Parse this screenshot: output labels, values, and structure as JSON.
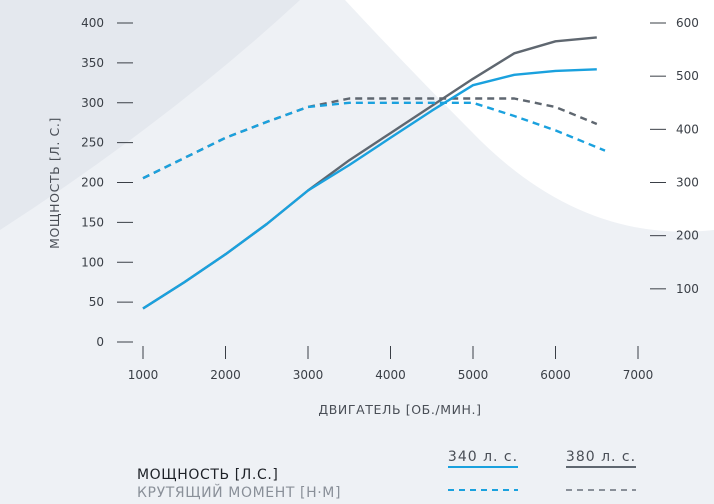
{
  "chart_data": {
    "type": "line",
    "xlabel": "ДВИГАТЕЛЬ [ОБ./МИН.]",
    "ylabel": "МОЩНОСТЬ [Л. С.]",
    "xlim": [
      1000,
      7000
    ],
    "x_ticks": [
      "1000",
      "2000",
      "3000",
      "4000",
      "5000",
      "6000",
      "7000"
    ],
    "ylim_left": [
      0,
      400
    ],
    "y_ticks_left": [
      "0",
      "50",
      "100",
      "150",
      "200",
      "250",
      "300",
      "350",
      "400"
    ],
    "ylim_right": [
      0,
      600
    ],
    "y_ticks_right": [
      "100",
      "200",
      "300",
      "400",
      "500",
      "600"
    ],
    "grid": false,
    "legend": {
      "placement": "bottom-right",
      "column_headers": [
        "340 л. с.",
        "380 л. с."
      ],
      "row_labels": [
        "МОЩНОСТЬ [Л.С.]",
        "КРУТЯЩИЙ МОМЕНТ [Н·М]"
      ]
    },
    "colors": {
      "hp340": "#1aa1de",
      "hp380": "#5f6770"
    },
    "series": [
      {
        "name": "МОЩНОСТЬ [Л.С.]",
        "variant": "340 л. с.",
        "axis": "left",
        "style": "solid",
        "x": [
          1000,
          1500,
          2000,
          2500,
          3000,
          3500,
          4000,
          4500,
          5000,
          5500,
          6000,
          6500
        ],
        "y": [
          42,
          75,
          110,
          148,
          190,
          222,
          256,
          290,
          322,
          335,
          340,
          342
        ]
      },
      {
        "name": "МОЩНОСТЬ [Л.С.]",
        "variant": "380 л. с.",
        "axis": "left",
        "style": "solid",
        "x": [
          1000,
          1500,
          2000,
          2500,
          3000,
          3500,
          4000,
          4500,
          5000,
          5500,
          6000,
          6500
        ],
        "y": [
          42,
          75,
          110,
          148,
          190,
          228,
          262,
          296,
          330,
          362,
          377,
          382
        ]
      },
      {
        "name": "КРУТЯЩИЙ МОМЕНТ [Н·М]",
        "variant": "340 л. с.",
        "axis": "right",
        "style": "dashed",
        "x": [
          1000,
          1500,
          2000,
          2500,
          3000,
          3500,
          4000,
          4500,
          5000,
          5500,
          6000,
          6600
        ],
        "y": [
          308,
          346,
          384,
          414,
          442,
          450,
          450,
          450,
          450,
          425,
          398,
          360
        ]
      },
      {
        "name": "КРУТЯЩИЙ МОМЕНТ [Н·М]",
        "variant": "380 л. с.",
        "axis": "right",
        "style": "dashed",
        "x": [
          1000,
          1500,
          2000,
          2500,
          3000,
          3500,
          4000,
          4500,
          5000,
          5500,
          6000,
          6500
        ],
        "y": [
          308,
          346,
          384,
          414,
          442,
          458,
          458,
          458,
          458,
          458,
          442,
          410
        ]
      }
    ]
  }
}
